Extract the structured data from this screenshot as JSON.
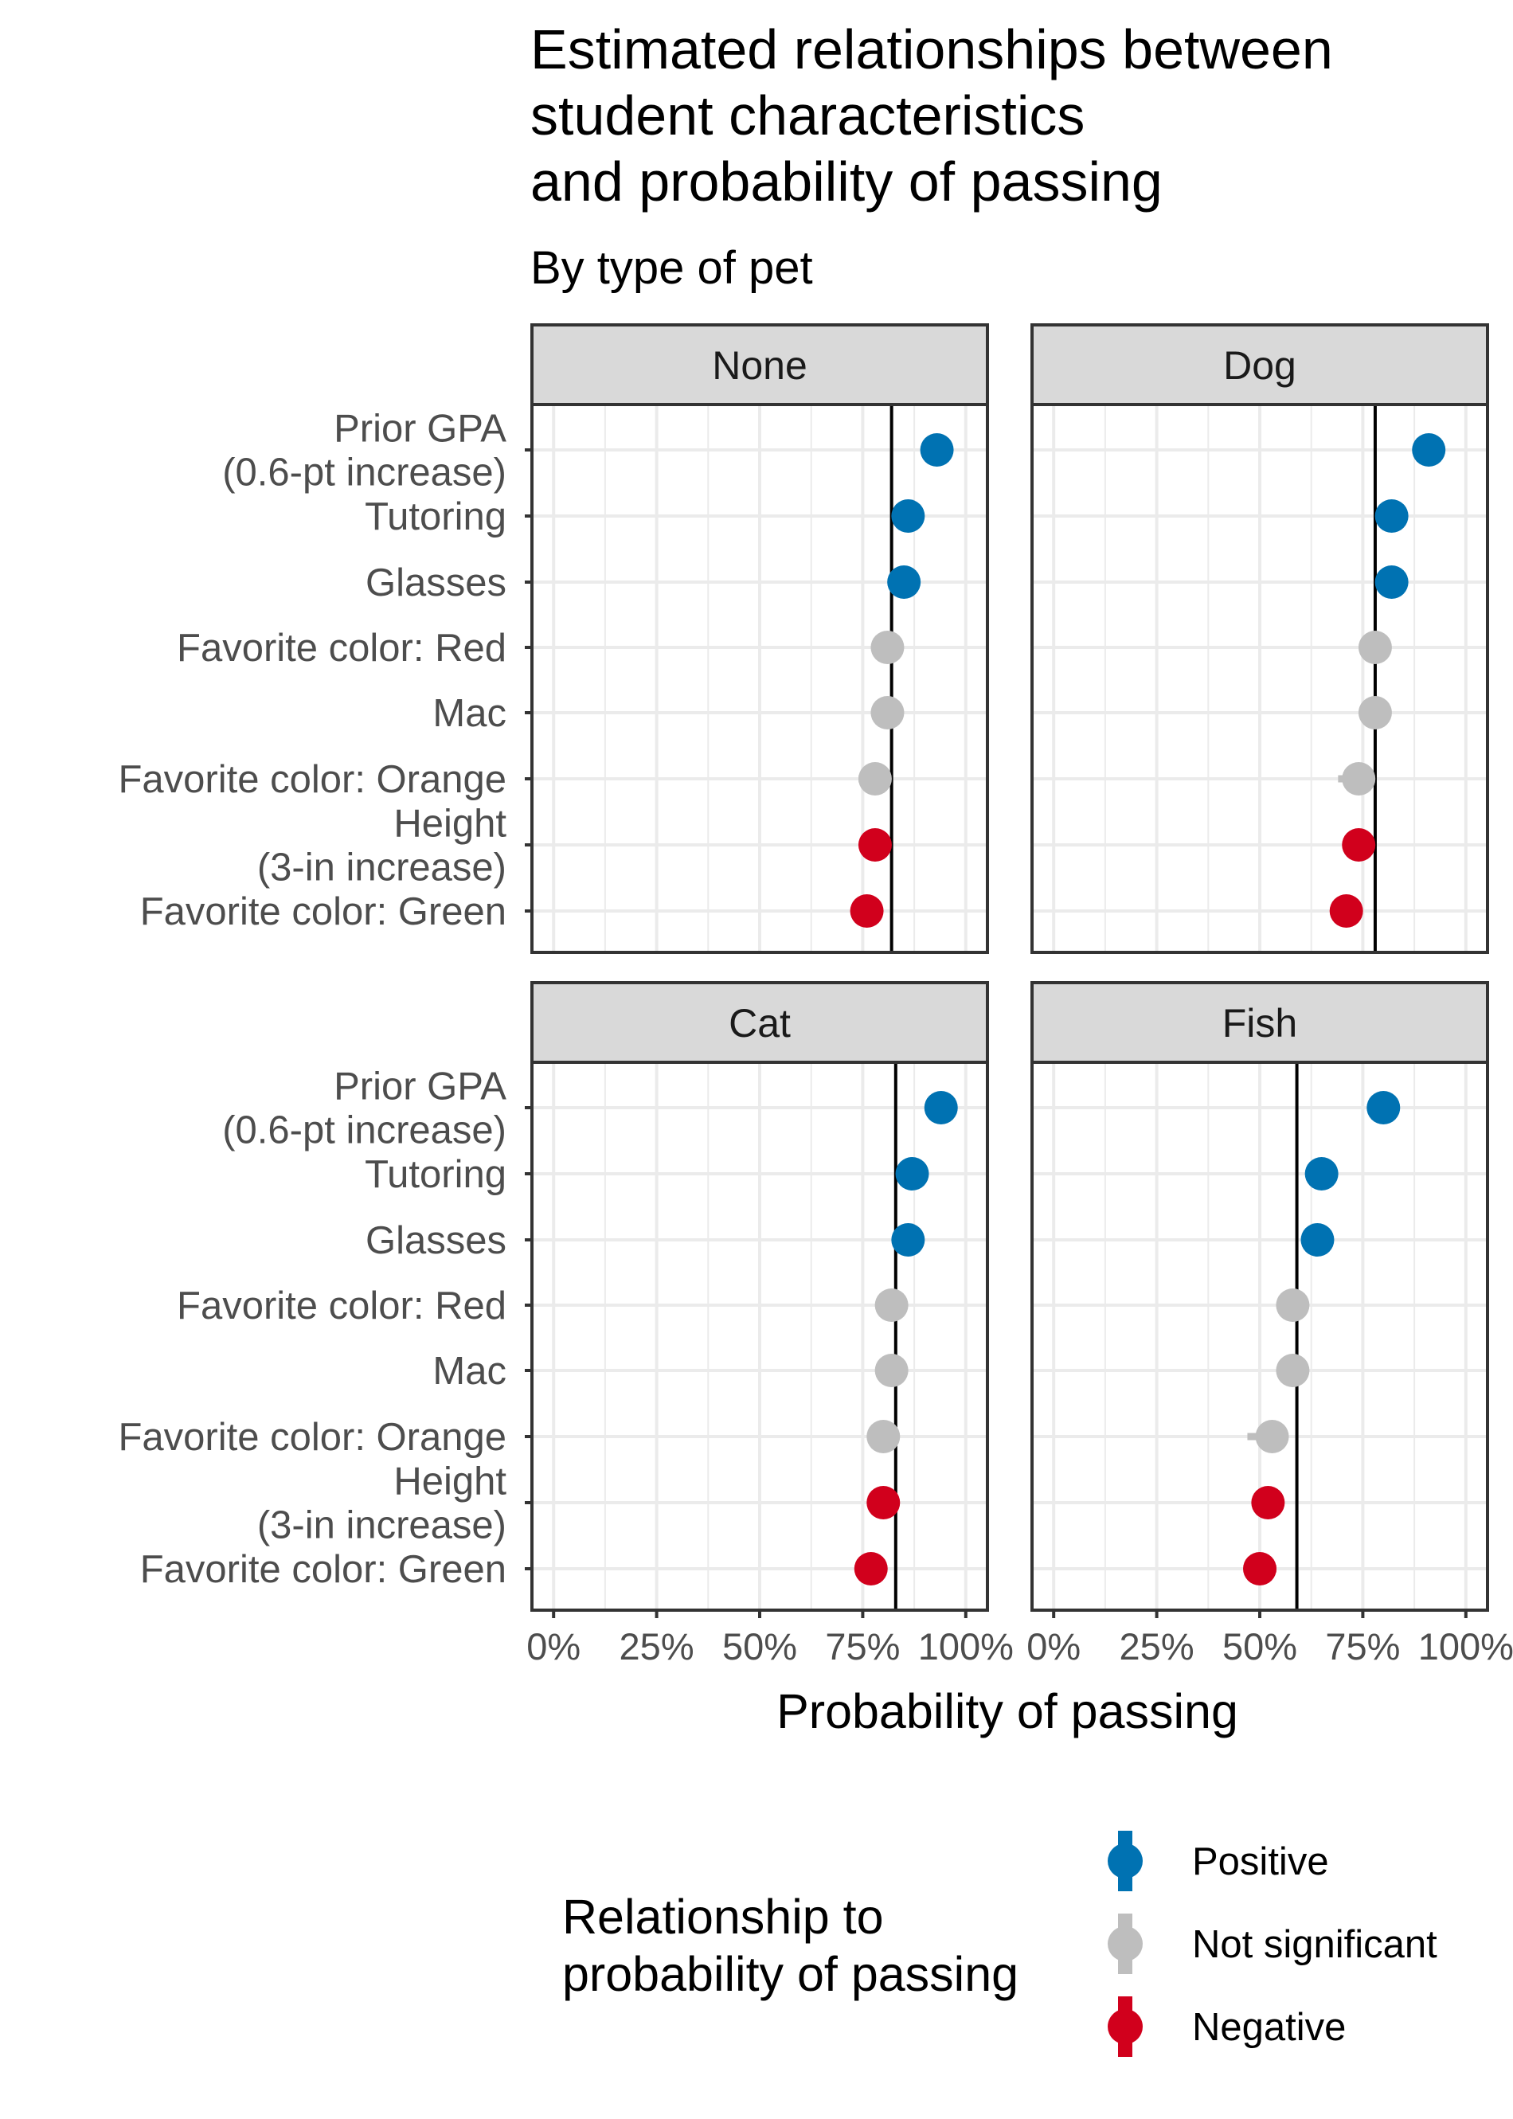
{
  "colors": {
    "Positive": "#0072B2",
    "Not significant": "#BEBEBE",
    "Negative": "#D1001C",
    "strip_fill": "#D9D9D9",
    "panel_border": "#333333",
    "gridline": "#EBEBEB"
  },
  "chart_data": {
    "type": "dot-interval",
    "title": [
      "Estimated relationships between",
      "student characteristics",
      "and probability of passing"
    ],
    "subtitle": "By type of pet",
    "xlabel": "Probability of passing",
    "xlim": [
      0,
      100
    ],
    "x_ticks": [
      0,
      25,
      50,
      75,
      100
    ],
    "x_tick_labels": [
      "0%",
      "25%",
      "50%",
      "75%",
      "100%"
    ],
    "categories": [
      "Prior GPA\n(0.6-pt increase)",
      "Tutoring",
      "Glasses",
      "Favorite color: Red",
      "Mac",
      "Favorite color: Orange",
      "Height\n(3-in increase)",
      "Favorite color: Green"
    ],
    "legend": {
      "title": [
        "Relationship to",
        "probability of passing"
      ],
      "items": [
        "Positive",
        "Not significant",
        "Negative"
      ],
      "position": "bottom"
    },
    "panels": [
      {
        "name": "None",
        "baseline": 82,
        "points": [
          {
            "estimate": 93,
            "low": 93,
            "high": 93,
            "relationship": "Positive"
          },
          {
            "estimate": 86,
            "low": 86,
            "high": 86,
            "relationship": "Positive"
          },
          {
            "estimate": 85,
            "low": 85,
            "high": 85,
            "relationship": "Positive"
          },
          {
            "estimate": 81,
            "low": 81,
            "high": 81,
            "relationship": "Not significant"
          },
          {
            "estimate": 81,
            "low": 81,
            "high": 81,
            "relationship": "Not significant"
          },
          {
            "estimate": 78,
            "low": 74,
            "high": 79,
            "relationship": "Not significant"
          },
          {
            "estimate": 78,
            "low": 78,
            "high": 78,
            "relationship": "Negative"
          },
          {
            "estimate": 76,
            "low": 76,
            "high": 76,
            "relationship": "Negative"
          }
        ]
      },
      {
        "name": "Dog",
        "baseline": 78,
        "points": [
          {
            "estimate": 91,
            "low": 91,
            "high": 91,
            "relationship": "Positive"
          },
          {
            "estimate": 82,
            "low": 82,
            "high": 82,
            "relationship": "Positive"
          },
          {
            "estimate": 82,
            "low": 82,
            "high": 82,
            "relationship": "Positive"
          },
          {
            "estimate": 78,
            "low": 78,
            "high": 78,
            "relationship": "Not significant"
          },
          {
            "estimate": 78,
            "low": 78,
            "high": 78,
            "relationship": "Not significant"
          },
          {
            "estimate": 74,
            "low": 69,
            "high": 75,
            "relationship": "Not significant"
          },
          {
            "estimate": 74,
            "low": 74,
            "high": 74,
            "relationship": "Negative"
          },
          {
            "estimate": 71,
            "low": 71,
            "high": 71,
            "relationship": "Negative"
          }
        ]
      },
      {
        "name": "Cat",
        "baseline": 83,
        "points": [
          {
            "estimate": 94,
            "low": 94,
            "high": 94,
            "relationship": "Positive"
          },
          {
            "estimate": 87,
            "low": 87,
            "high": 87,
            "relationship": "Positive"
          },
          {
            "estimate": 86,
            "low": 86,
            "high": 86,
            "relationship": "Positive"
          },
          {
            "estimate": 82,
            "low": 82,
            "high": 82,
            "relationship": "Not significant"
          },
          {
            "estimate": 82,
            "low": 82,
            "high": 82,
            "relationship": "Not significant"
          },
          {
            "estimate": 80,
            "low": 79,
            "high": 81,
            "relationship": "Not significant"
          },
          {
            "estimate": 80,
            "low": 80,
            "high": 80,
            "relationship": "Negative"
          },
          {
            "estimate": 77,
            "low": 77,
            "high": 77,
            "relationship": "Negative"
          }
        ]
      },
      {
        "name": "Fish",
        "baseline": 59,
        "points": [
          {
            "estimate": 80,
            "low": 80,
            "high": 80,
            "relationship": "Positive"
          },
          {
            "estimate": 65,
            "low": 65,
            "high": 65,
            "relationship": "Positive"
          },
          {
            "estimate": 64,
            "low": 64,
            "high": 64,
            "relationship": "Positive"
          },
          {
            "estimate": 58,
            "low": 58,
            "high": 58,
            "relationship": "Not significant"
          },
          {
            "estimate": 58,
            "low": 58,
            "high": 58,
            "relationship": "Not significant"
          },
          {
            "estimate": 53,
            "low": 47,
            "high": 54,
            "relationship": "Not significant"
          },
          {
            "estimate": 52,
            "low": 52,
            "high": 52,
            "relationship": "Negative"
          },
          {
            "estimate": 50,
            "low": 47,
            "high": 54,
            "relationship": "Negative"
          }
        ]
      }
    ]
  }
}
